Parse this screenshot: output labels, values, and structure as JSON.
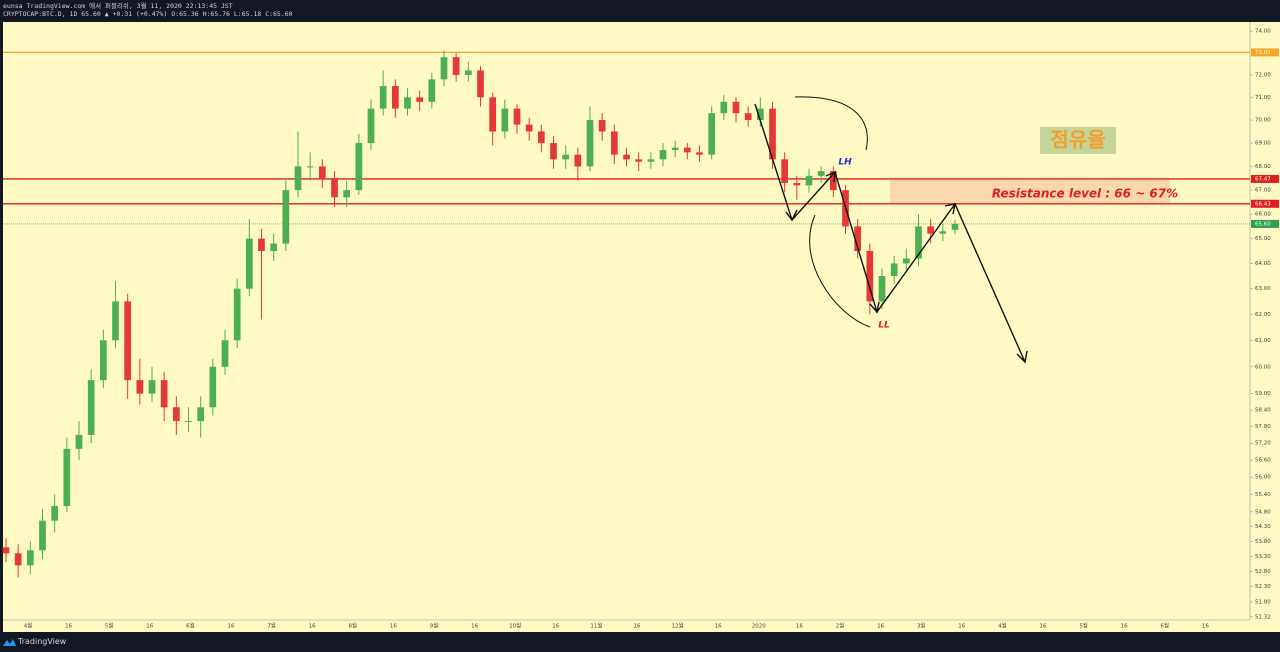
{
  "header": {
    "publish": "eunsa TradingView.com 에서 퍼블리쉬, 3월 11, 2020 22:13:45 JST",
    "symbol": "CRYPTOCAP:BTC.D, 1D 65.60 ▲ +0.31 (+0.47%) O:65.36 H:65.76 L:65.18 C:65.60"
  },
  "footer": {
    "brand": "TradingView"
  },
  "annotations": {
    "share": "점유율",
    "resistance": "Resistance level : 66 ~ 67%",
    "lh": "LH",
    "ll": "LL"
  },
  "chart_data": {
    "type": "candlestick",
    "log_scale": true,
    "up_color": "#4caf50",
    "down_color": "#e53935",
    "ylim": [
      51.22,
      74.42
    ],
    "yticks": [
      {
        "value": 74,
        "label": "74.00"
      },
      {
        "value": 72,
        "label": "72.00"
      },
      {
        "value": 71,
        "label": "71.00"
      },
      {
        "value": 70,
        "label": "70.00"
      },
      {
        "value": 69,
        "label": "69.00"
      },
      {
        "value": 68,
        "label": "68.00"
      },
      {
        "value": 67,
        "label": "67.00"
      },
      {
        "value": 66,
        "label": "66.00"
      },
      {
        "value": 65,
        "label": "65.00"
      },
      {
        "value": 64,
        "label": "64.00"
      },
      {
        "value": 63,
        "label": "63.00"
      },
      {
        "value": 62,
        "label": "62.00"
      },
      {
        "value": 61,
        "label": "61.00"
      },
      {
        "value": 60,
        "label": "60.00"
      },
      {
        "value": 59,
        "label": "59.00"
      },
      {
        "value": 58.4,
        "label": "58.40"
      },
      {
        "value": 57.8,
        "label": "57.80"
      },
      {
        "value": 57.2,
        "label": "57.20"
      },
      {
        "value": 56.6,
        "label": "56.60"
      },
      {
        "value": 56,
        "label": "56.00"
      },
      {
        "value": 55.4,
        "label": "55.40"
      },
      {
        "value": 54.8,
        "label": "54.80"
      },
      {
        "value": 54.3,
        "label": "54.30"
      },
      {
        "value": 53.8,
        "label": "53.80"
      },
      {
        "value": 53.3,
        "label": "53.30"
      },
      {
        "value": 52.8,
        "label": "52.80"
      },
      {
        "value": 52.3,
        "label": "52.30"
      },
      {
        "value": 51.8,
        "label": "51.80"
      },
      {
        "value": 51.32,
        "label": "51.32"
      }
    ],
    "time_labels": [
      "4월",
      "16",
      "5월",
      "16",
      "6월",
      "16",
      "7월",
      "16",
      "8월",
      "16",
      "9월",
      "16",
      "10월",
      "16",
      "11월",
      "16",
      "12월",
      "16",
      "2020",
      "16",
      "2월",
      "16",
      "3월",
      "16",
      "4월",
      "16",
      "5월",
      "16",
      "6월",
      "16"
    ],
    "levels": [
      {
        "price": 73.02,
        "color": "#f5a623",
        "style": "solid"
      },
      {
        "price": 67.47,
        "color": "#e0201e",
        "style": "solid"
      },
      {
        "price": 66.43,
        "color": "#e0201e",
        "style": "solid"
      },
      {
        "price": {
          "value": 65.6,
          "label": "65.60"
        },
        "color": "#2e9e50",
        "style": "dotted"
      }
    ],
    "resistance_zone": {
      "from_level": 2,
      "to_level": 1,
      "color": "#f9cfa6"
    },
    "candles": [
      [
        53.6,
        53.9,
        53.1,
        53.4
      ],
      [
        53.4,
        53.7,
        52.6,
        53.0
      ],
      [
        53.0,
        53.8,
        52.7,
        53.5
      ],
      [
        53.5,
        54.9,
        53.2,
        54.5
      ],
      [
        54.5,
        55.4,
        54.1,
        55.0
      ],
      [
        55.0,
        57.4,
        54.8,
        57.0
      ],
      [
        57.0,
        58.0,
        56.6,
        57.5
      ],
      [
        57.5,
        59.9,
        57.2,
        59.5
      ],
      [
        59.5,
        61.4,
        59.2,
        61.0
      ],
      [
        61.0,
        63.3,
        60.7,
        62.5
      ],
      [
        62.5,
        62.8,
        58.8,
        59.5
      ],
      [
        59.5,
        60.3,
        58.6,
        59.0
      ],
      [
        59.0,
        60.0,
        58.7,
        59.5
      ],
      [
        59.5,
        59.8,
        58.0,
        58.5
      ],
      [
        58.5,
        58.9,
        57.5,
        58.0
      ],
      [
        58.0,
        58.5,
        57.6,
        58.0
      ],
      [
        58.0,
        58.9,
        57.4,
        58.5
      ],
      [
        58.5,
        60.3,
        58.2,
        60.0
      ],
      [
        60.0,
        61.4,
        59.7,
        61.0
      ],
      [
        61.0,
        63.4,
        60.7,
        63.0
      ],
      [
        63.0,
        65.8,
        62.7,
        65.0
      ],
      [
        65.0,
        65.4,
        61.8,
        64.5
      ],
      [
        64.5,
        65.2,
        64.1,
        64.8
      ],
      [
        64.8,
        67.4,
        64.5,
        67.0
      ],
      [
        67.0,
        69.5,
        66.7,
        68.0
      ],
      [
        68.0,
        68.6,
        67.4,
        68.0
      ],
      [
        68.0,
        68.3,
        67.1,
        67.5
      ],
      [
        67.5,
        67.8,
        66.3,
        66.7
      ],
      [
        66.7,
        67.4,
        66.3,
        67.0
      ],
      [
        67.0,
        69.4,
        66.8,
        69.0
      ],
      [
        69.0,
        70.9,
        68.7,
        70.5
      ],
      [
        70.5,
        72.2,
        70.2,
        71.5
      ],
      [
        71.5,
        71.8,
        70.1,
        70.5
      ],
      [
        70.5,
        71.4,
        70.2,
        71.0
      ],
      [
        71.0,
        71.3,
        70.4,
        70.8
      ],
      [
        70.8,
        72.1,
        70.5,
        71.8
      ],
      [
        71.8,
        73.1,
        71.5,
        72.8
      ],
      [
        72.8,
        73.0,
        71.7,
        72.0
      ],
      [
        72.0,
        72.6,
        71.7,
        72.2
      ],
      [
        72.2,
        72.4,
        70.6,
        71.0
      ],
      [
        71.0,
        71.2,
        68.9,
        69.5
      ],
      [
        69.5,
        70.9,
        69.2,
        70.5
      ],
      [
        70.5,
        70.7,
        69.4,
        69.8
      ],
      [
        69.8,
        70.1,
        69.1,
        69.5
      ],
      [
        69.5,
        69.8,
        68.6,
        69.0
      ],
      [
        69.0,
        69.3,
        67.9,
        68.3
      ],
      [
        68.3,
        68.9,
        67.9,
        68.5
      ],
      [
        68.5,
        68.8,
        67.4,
        68.0
      ],
      [
        68.0,
        70.6,
        67.8,
        70.0
      ],
      [
        70.0,
        70.3,
        69.1,
        69.5
      ],
      [
        69.5,
        69.8,
        68.1,
        68.5
      ],
      [
        68.5,
        68.8,
        68.0,
        68.3
      ],
      [
        68.3,
        68.6,
        67.8,
        68.2
      ],
      [
        68.2,
        68.6,
        67.9,
        68.3
      ],
      [
        68.3,
        69.0,
        68.0,
        68.7
      ],
      [
        68.7,
        69.1,
        68.4,
        68.8
      ],
      [
        68.8,
        69.0,
        68.3,
        68.6
      ],
      [
        68.6,
        68.9,
        68.2,
        68.5
      ],
      [
        68.5,
        70.6,
        68.3,
        70.3
      ],
      [
        70.3,
        71.1,
        70.0,
        70.8
      ],
      [
        70.8,
        71.0,
        69.9,
        70.3
      ],
      [
        70.3,
        70.6,
        69.7,
        70.0
      ],
      [
        70.0,
        71.0,
        69.7,
        70.5
      ],
      [
        70.5,
        70.8,
        67.9,
        68.3
      ],
      [
        68.3,
        68.6,
        66.9,
        67.3
      ],
      [
        67.3,
        67.6,
        66.6,
        67.2
      ],
      [
        67.2,
        67.9,
        66.9,
        67.6
      ],
      [
        67.6,
        68.0,
        67.3,
        67.8
      ],
      [
        67.8,
        68.0,
        66.7,
        67.0
      ],
      [
        67.0,
        67.2,
        65.2,
        65.5
      ],
      [
        65.5,
        65.8,
        64.2,
        64.5
      ],
      [
        64.5,
        64.8,
        62.0,
        62.5
      ],
      [
        62.5,
        63.8,
        62.2,
        63.5
      ],
      [
        63.5,
        64.3,
        63.2,
        64.0
      ],
      [
        64.0,
        64.6,
        63.7,
        64.2
      ],
      [
        64.2,
        66.0,
        63.9,
        65.5
      ],
      [
        65.5,
        65.8,
        64.8,
        65.2
      ],
      [
        65.2,
        65.6,
        64.9,
        65.3
      ],
      [
        65.36,
        65.76,
        65.18,
        65.6
      ]
    ]
  }
}
